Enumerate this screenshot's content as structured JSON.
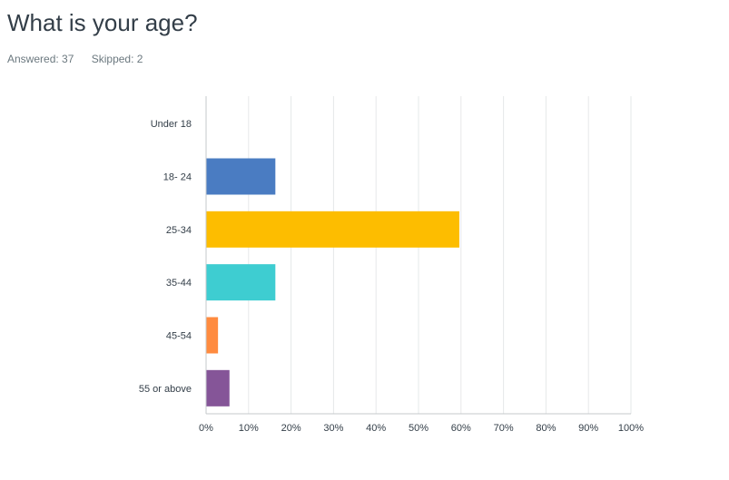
{
  "question": {
    "title": "What is your age?",
    "answered_label": "Answered: 37",
    "skipped_label": "Skipped: 2"
  },
  "chart_data": {
    "type": "bar",
    "orientation": "horizontal",
    "categories": [
      "Under 18",
      "18- 24",
      "25-34",
      "35-44",
      "45-54",
      "55 or above"
    ],
    "values": [
      0,
      16.2,
      59.5,
      16.2,
      2.7,
      5.4
    ],
    "colors": [
      "#4a7cc2",
      "#4a7cc2",
      "#fdbd00",
      "#3ecdd1",
      "#ff8b3f",
      "#855598"
    ],
    "xlim": [
      0,
      100
    ],
    "xticks": [
      0,
      10,
      20,
      30,
      40,
      50,
      60,
      70,
      80,
      90,
      100
    ],
    "xtick_labels": [
      "0%",
      "10%",
      "20%",
      "30%",
      "40%",
      "50%",
      "60%",
      "70%",
      "80%",
      "90%",
      "100%"
    ],
    "grid": true
  }
}
